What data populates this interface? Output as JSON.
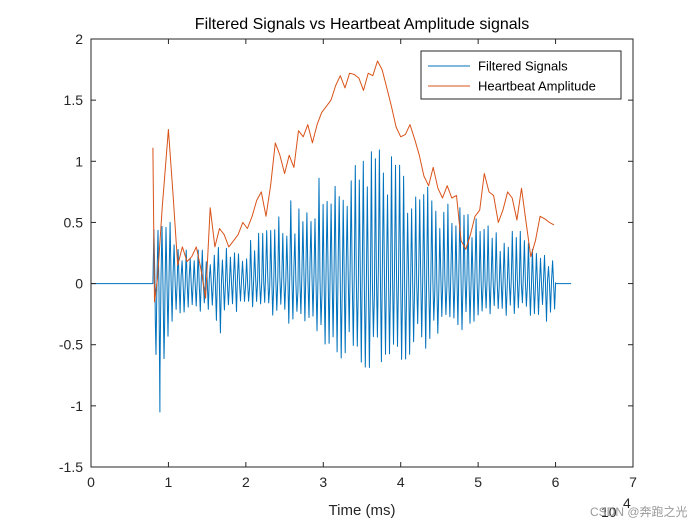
{
  "chart_data": {
    "type": "line",
    "title": "Filtered Signals vs Heartbeat Amplitude signals",
    "xlabel": "Time (ms)",
    "ylabel": "",
    "x_exponent_label": "10",
    "x_exponent_power": "4",
    "xlim": [
      0,
      70000
    ],
    "ylim": [
      -1.5,
      2
    ],
    "xticks": [
      0,
      10000,
      20000,
      30000,
      40000,
      50000,
      60000,
      70000
    ],
    "xtick_labels": [
      "0",
      "1",
      "2",
      "3",
      "4",
      "5",
      "6",
      "7"
    ],
    "yticks": [
      -1.5,
      -1,
      -0.5,
      0,
      0.5,
      1,
      1.5,
      2
    ],
    "ytick_labels": [
      "-1.5",
      "-1",
      "-0.5",
      "0",
      "0.5",
      "1",
      "1.5",
      "2"
    ],
    "legend": {
      "position": "top-right",
      "entries": [
        "Filtered Signals",
        "Heartbeat Amplitude"
      ]
    },
    "colors": {
      "filtered": "#0072BD",
      "heartbeat": "#D95319",
      "axis": "#262626"
    },
    "series": [
      {
        "name": "Heartbeat Amplitude",
        "x": [
          8000,
          8200,
          8600,
          9200,
          10000,
          10600,
          11200,
          11800,
          12400,
          13000,
          13600,
          14200,
          14800,
          15400,
          16000,
          16600,
          17200,
          17800,
          18400,
          19000,
          19600,
          20200,
          20800,
          21400,
          22000,
          22600,
          23200,
          23800,
          24400,
          25000,
          25600,
          26200,
          26800,
          27400,
          28000,
          28600,
          29200,
          29800,
          30400,
          31000,
          31600,
          32200,
          32800,
          33400,
          34000,
          34600,
          35200,
          35800,
          36400,
          37000,
          37600,
          38200,
          38800,
          39400,
          40000,
          40600,
          41200,
          41800,
          42400,
          43000,
          43600,
          44200,
          44800,
          45400,
          46000,
          46600,
          47200,
          47800,
          48400,
          49000,
          49600,
          50200,
          50800,
          51400,
          52000,
          52600,
          53200,
          53800,
          54400,
          55000,
          55600,
          56200,
          56800,
          57400,
          58000,
          58600,
          59200,
          59800
        ],
        "values": [
          1.11,
          -0.15,
          0.05,
          0.62,
          1.26,
          0.72,
          0.15,
          0.3,
          0.18,
          0.22,
          0.3,
          0.12,
          -0.12,
          0.62,
          0.3,
          0.45,
          0.4,
          0.3,
          0.35,
          0.4,
          0.5,
          0.45,
          0.55,
          0.68,
          0.75,
          0.55,
          0.8,
          1.15,
          1.05,
          0.9,
          1.05,
          0.95,
          1.25,
          1.2,
          1.3,
          1.15,
          1.3,
          1.4,
          1.45,
          1.5,
          1.62,
          1.7,
          1.6,
          1.72,
          1.71,
          1.68,
          1.58,
          1.72,
          1.7,
          1.82,
          1.75,
          1.6,
          1.45,
          1.28,
          1.2,
          1.22,
          1.3,
          1.18,
          1.05,
          0.88,
          0.8,
          0.95,
          0.78,
          0.7,
          0.8,
          0.7,
          0.72,
          0.35,
          0.28,
          0.4,
          0.55,
          0.6,
          0.9,
          0.75,
          0.72,
          0.5,
          0.6,
          0.75,
          0.7,
          0.52,
          0.78,
          0.5,
          0.22,
          0.35,
          0.55,
          0.53,
          0.5,
          0.48
        ]
      },
      {
        "name": "Filtered Signals",
        "x_start": 0,
        "x_end": 62000,
        "onset": 8000,
        "offset": 60000,
        "beat_period": 520,
        "envelope_x": [
          8000,
          9000,
          10000,
          11000,
          12000,
          13000,
          14000,
          15000,
          16000,
          17000,
          18000,
          19000,
          20000,
          21000,
          22000,
          23000,
          24000,
          25000,
          26000,
          27000,
          28000,
          29000,
          30000,
          31000,
          32000,
          33000,
          34000,
          35000,
          36000,
          37000,
          38000,
          39000,
          40000,
          41000,
          42000,
          43000,
          44000,
          45000,
          46000,
          47000,
          48000,
          49000,
          50000,
          51000,
          52000,
          53000,
          54000,
          55000,
          56000,
          57000,
          58000,
          59000,
          60000
        ],
        "envelope_pos": [
          0.85,
          0.5,
          0.55,
          0.4,
          0.3,
          0.25,
          0.3,
          0.25,
          0.28,
          0.35,
          0.3,
          0.3,
          0.33,
          0.4,
          0.45,
          0.55,
          0.6,
          0.65,
          0.7,
          0.75,
          0.8,
          0.85,
          0.88,
          0.92,
          0.95,
          0.98,
          1.02,
          1.05,
          1.1,
          1.12,
          1.1,
          1.08,
          1.02,
          0.98,
          0.92,
          0.88,
          0.85,
          0.82,
          0.78,
          0.72,
          0.65,
          0.6,
          0.55,
          0.5,
          0.45,
          0.42,
          0.5,
          0.45,
          0.4,
          0.32,
          0.25,
          0.22,
          0.2
        ],
        "envelope_neg": [
          -0.9,
          -0.9,
          -0.45,
          -0.3,
          -0.3,
          -0.25,
          -0.3,
          -0.2,
          -0.35,
          -0.45,
          -0.2,
          -0.25,
          -0.15,
          -0.2,
          -0.2,
          -0.25,
          -0.28,
          -0.32,
          -0.35,
          -0.4,
          -0.42,
          -0.45,
          -0.5,
          -0.55,
          -0.6,
          -0.65,
          -0.68,
          -0.7,
          -0.72,
          -0.72,
          -0.7,
          -0.68,
          -0.65,
          -0.62,
          -0.58,
          -0.55,
          -0.5,
          -0.48,
          -0.45,
          -0.4,
          -0.38,
          -0.35,
          -0.32,
          -0.3,
          -0.3,
          -0.28,
          -0.28,
          -0.25,
          -0.22,
          -0.28,
          -0.3,
          -0.32,
          -0.3
        ],
        "extremes": [
          {
            "x": 8300,
            "y": -0.3
          },
          {
            "x": 8900,
            "y": -1.05
          },
          {
            "x": 9500,
            "y": -0.35
          }
        ]
      }
    ]
  },
  "watermark": "CSDN @奔跑之光"
}
